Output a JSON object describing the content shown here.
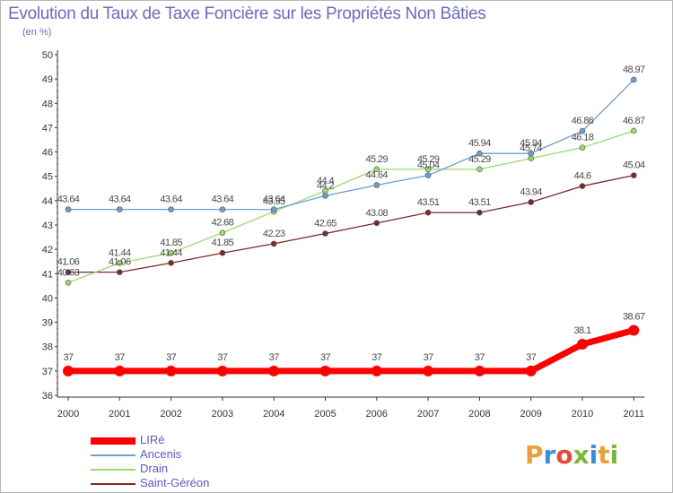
{
  "header": {
    "title": "Evolution du Taux de Taxe Foncière sur les Propriétés Non Bâties",
    "unit": "(en %)"
  },
  "logo": {
    "text": "Proxiti",
    "colors": [
      "#e8a03a",
      "#3a8fd6",
      "#e84a3a",
      "#7ab83a",
      "#3a8fd6",
      "#e8a03a",
      "#7ab83a"
    ]
  },
  "chart_data": {
    "type": "line",
    "title": "Evolution du Taux de Taxe Foncière sur les Propriétés Non Bâties",
    "ylabel": "(en %)",
    "xlabel": "",
    "ylim": [
      36,
      50
    ],
    "yticks": [
      36,
      37,
      38,
      39,
      40,
      41,
      42,
      43,
      44,
      45,
      46,
      47,
      48,
      49,
      50
    ],
    "x": [
      "2000",
      "2001",
      "2002",
      "2003",
      "2004",
      "2005",
      "2006",
      "2007",
      "2008",
      "2009",
      "2010",
      "2011"
    ],
    "grid": false,
    "legend": "bottom-left",
    "series": [
      {
        "name": "LIRé",
        "color": "#ff0000",
        "values": [
          37,
          37,
          37,
          37,
          37,
          37,
          37,
          37,
          37,
          37,
          38.1,
          38.67
        ],
        "labels": [
          "37",
          "37",
          "37",
          "37",
          "37",
          "37",
          "37",
          "37",
          "37",
          "37",
          "38.1",
          "38.67"
        ]
      },
      {
        "name": "Ancenis",
        "color": "#6a9fd2",
        "values": [
          43.64,
          43.64,
          43.64,
          43.64,
          43.64,
          44.2,
          44.64,
          45.04,
          45.94,
          45.94,
          46.86,
          48.97
        ],
        "labels": [
          "43.64",
          "43.64",
          "43.64",
          "43.64",
          "43.64",
          "44.2",
          "44.64",
          "45.04",
          "45.94",
          "45.94",
          "46.86",
          "48.97"
        ]
      },
      {
        "name": "Drain",
        "color": "#99d96b",
        "values": [
          40.63,
          41.44,
          41.85,
          42.68,
          43.55,
          44.4,
          45.29,
          45.29,
          45.29,
          45.74,
          46.18,
          46.87
        ],
        "labels": [
          "40.63",
          "41.44",
          "41.85",
          "42.68",
          "43.55",
          "44.4",
          "45.29",
          "45.29",
          "45.29",
          "45.74",
          "46.18",
          "46.87"
        ]
      },
      {
        "name": "Saint-Géréon",
        "color": "#7a2a2a",
        "values": [
          41.06,
          41.06,
          41.44,
          41.85,
          42.23,
          42.65,
          43.08,
          43.51,
          43.51,
          43.94,
          44.6,
          45.04
        ],
        "labels": [
          "41.06",
          "41.06",
          "41.44",
          "41.85",
          "42.23",
          "42.65",
          "43.08",
          "43.51",
          "43.51",
          "43.94",
          "44.6",
          "45.04"
        ]
      }
    ]
  }
}
